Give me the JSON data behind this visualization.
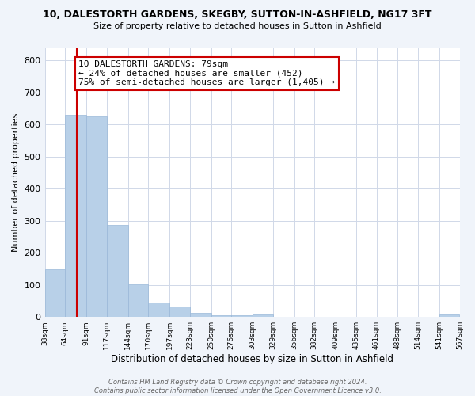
{
  "title": "10, DALESTORTH GARDENS, SKEGBY, SUTTON-IN-ASHFIELD, NG17 3FT",
  "subtitle": "Size of property relative to detached houses in Sutton in Ashfield",
  "xlabel": "Distribution of detached houses by size in Sutton in Ashfield",
  "ylabel": "Number of detached properties",
  "bar_edges": [
    38,
    64,
    91,
    117,
    144,
    170,
    197,
    223,
    250,
    276,
    303,
    329,
    356,
    382,
    409,
    435,
    461,
    488,
    514,
    541,
    567
  ],
  "bar_heights": [
    148,
    630,
    625,
    288,
    101,
    46,
    32,
    14,
    5,
    5,
    7,
    1,
    0,
    0,
    0,
    0,
    0,
    0,
    0,
    7
  ],
  "bar_color": "#b8d0e8",
  "bar_edge_color": "#9ab8d8",
  "property_size": 79,
  "property_line_color": "#cc0000",
  "annotation_line1": "10 DALESTORTH GARDENS: 79sqm",
  "annotation_line2": "← 24% of detached houses are smaller (452)",
  "annotation_line3": "75% of semi-detached houses are larger (1,405) →",
  "annotation_box_color": "#ffffff",
  "annotation_box_edge": "#cc0000",
  "ylim": [
    0,
    840
  ],
  "yticks": [
    0,
    100,
    200,
    300,
    400,
    500,
    600,
    700,
    800
  ],
  "tick_labels": [
    "38sqm",
    "64sqm",
    "91sqm",
    "117sqm",
    "144sqm",
    "170sqm",
    "197sqm",
    "223sqm",
    "250sqm",
    "276sqm",
    "303sqm",
    "329sqm",
    "356sqm",
    "382sqm",
    "409sqm",
    "435sqm",
    "461sqm",
    "488sqm",
    "514sqm",
    "541sqm",
    "567sqm"
  ],
  "footer": "Contains HM Land Registry data © Crown copyright and database right 2024.\nContains public sector information licensed under the Open Government Licence v3.0.",
  "bg_color": "#f0f4fa",
  "plot_bg_color": "#ffffff",
  "grid_color": "#d0d8e8"
}
